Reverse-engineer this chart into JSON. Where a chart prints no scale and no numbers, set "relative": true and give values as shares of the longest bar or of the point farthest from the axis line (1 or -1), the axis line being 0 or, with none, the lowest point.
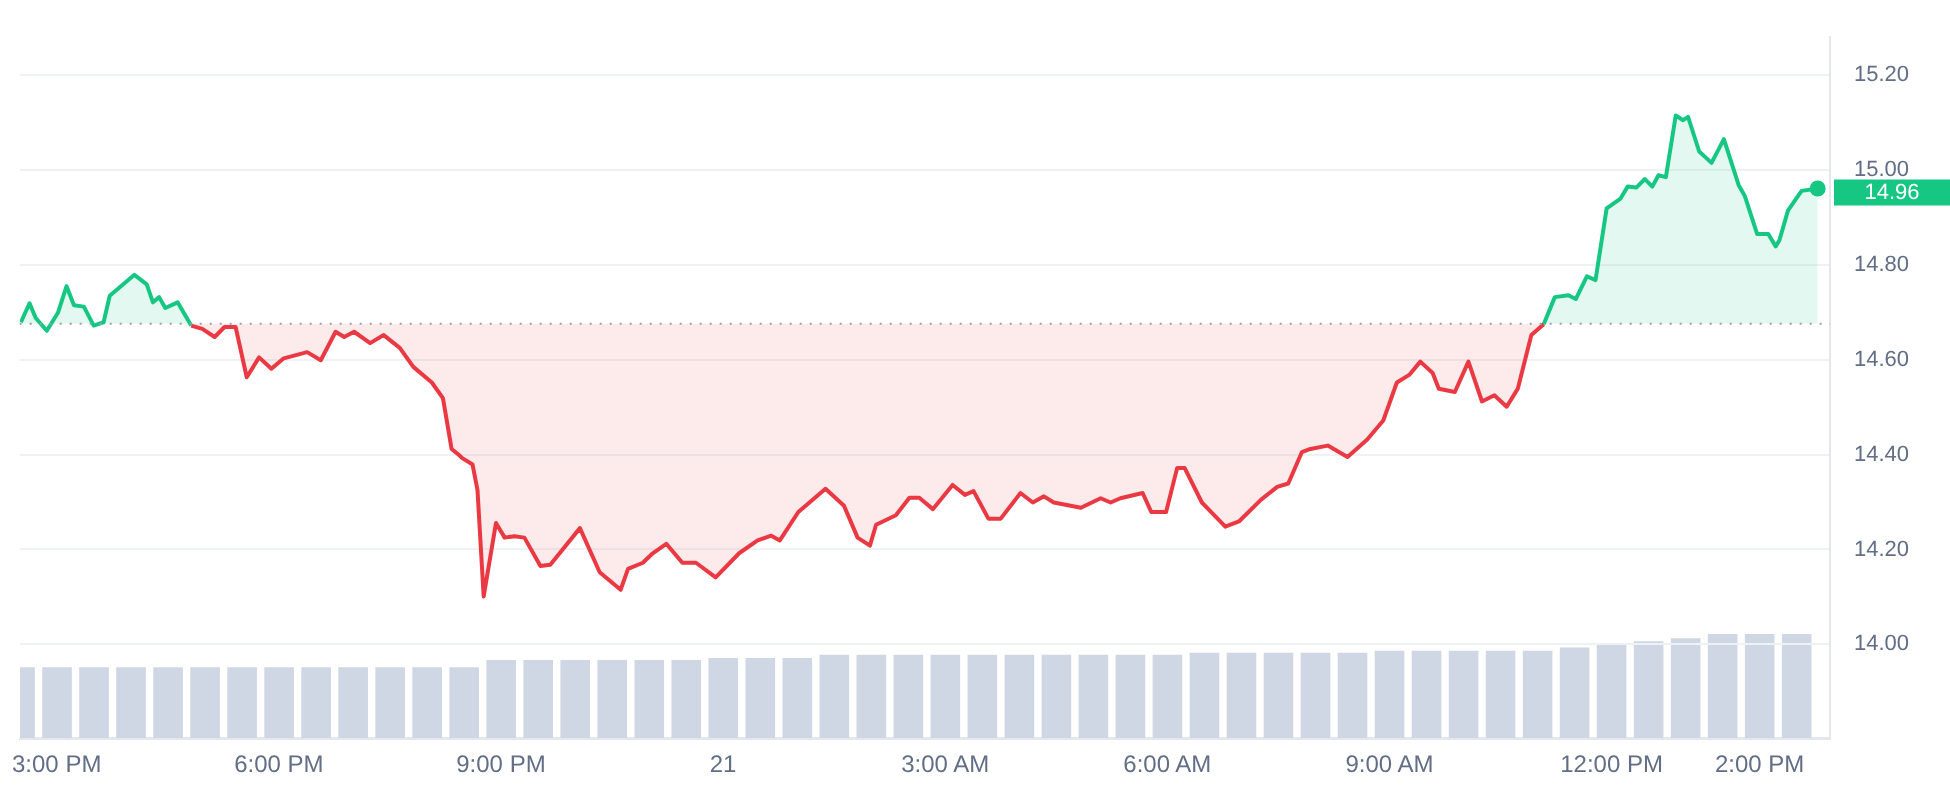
{
  "chart_data": [
    {
      "type": "area",
      "xlim": [
        "--01-20T14:30",
        "--01-21T14:57"
      ],
      "xticks": [
        {
          "value": "--01-20T15:00",
          "label": "3:00 PM"
        },
        {
          "value": "--01-20T18:00",
          "label": "6:00 PM"
        },
        {
          "value": "--01-20T21:00",
          "label": "9:00 PM"
        },
        {
          "value": "--01-21T00:00",
          "label": "21"
        },
        {
          "value": "--01-21T03:00",
          "label": "3:00 AM"
        },
        {
          "value": "--01-21T06:00",
          "label": "6:00 AM"
        },
        {
          "value": "--01-21T09:00",
          "label": "9:00 AM"
        },
        {
          "value": "--01-21T12:00",
          "label": "12:00 PM"
        },
        {
          "value": "--01-21T14:00",
          "label": "2:00 PM"
        }
      ],
      "ylim": [
        13.8,
        15.28
      ],
      "yticks": [
        {
          "value": 14,
          "label": "14.00"
        },
        {
          "value": 14.2,
          "label": "14.20"
        },
        {
          "value": 14.4,
          "label": "14.40"
        },
        {
          "value": 14.6,
          "label": "14.60"
        },
        {
          "value": 14.8,
          "label": "14.80"
        },
        {
          "value": 15,
          "label": "15.00"
        },
        {
          "value": 15.2,
          "label": "15.20"
        }
      ],
      "grid": "y",
      "legend": false,
      "marker": "none",
      "line_style": "solid",
      "ref_lines": [
        {
          "axis": "y",
          "value": 14.676,
          "color": "#9aa0a8",
          "line_style": "dotted"
        }
      ],
      "annotations": [
        "14.96"
      ],
      "series": [
        {
          "color": "#16c784",
          "x": [
            "--01-20T14:31",
            "--01-20T14:38",
            "--01-20T14:43",
            "--01-20T14:52",
            "--01-20T15:01",
            "--01-20T15:08",
            "--01-20T15:14",
            "--01-20T15:22",
            "--01-20T15:30",
            "--01-20T15:38",
            "--01-20T15:43",
            "--01-20T16:03",
            "--01-20T16:13",
            "--01-20T16:18",
            "--01-20T16:23",
            "--01-20T16:28",
            "--01-20T16:38",
            "--01-20T16:49"
          ],
          "values": [
            14.679,
            14.719,
            14.688,
            14.661,
            14.699,
            14.755,
            14.715,
            14.712,
            14.672,
            14.679,
            14.735,
            14.779,
            14.759,
            14.721,
            14.732,
            14.709,
            14.721,
            14.672
          ]
        },
        {
          "color": "#ea3943",
          "x": [
            "--01-20T16:49",
            "--01-20T16:58",
            "--01-20T17:08",
            "--01-20T17:16",
            "--01-20T17:25",
            "--01-20T17:34",
            "--01-20T17:44",
            "--01-20T17:54",
            "--01-20T18:04",
            "--01-20T18:23",
            "--01-20T18:34",
            "--01-20T18:46",
            "--01-20T18:53",
            "--01-20T19:01",
            "--01-20T19:14",
            "--01-20T19:25",
            "--01-20T19:38",
            "--01-20T19:49",
            "--01-20T20:04",
            "--01-20T20:13",
            "--01-20T20:20",
            "--01-20T20:26",
            "--01-20T20:29",
            "--01-20T20:37",
            "--01-20T20:41",
            "--01-20T20:46",
            "--01-20T20:56",
            "--01-20T21:03",
            "--01-20T21:11",
            "--01-20T21:19",
            "--01-20T21:32",
            "--01-20T21:40",
            "--01-20T22:04",
            "--01-20T22:20",
            "--01-20T22:37",
            "--01-20T22:43",
            "--01-20T22:55",
            "--01-20T23:03",
            "--01-20T23:14",
            "--01-20T23:27",
            "--01-20T23:38",
            "--01-20T23:54",
            "--01-21T00:13",
            "--01-21T00:28",
            "--01-21T00:39",
            "--01-21T00:46",
            "--01-21T01:01",
            "--01-21T01:23",
            "--01-21T01:38",
            "--01-21T01:49",
            "--01-21T01:59",
            "--01-21T02:04",
            "--01-21T02:20",
            "--01-21T02:31",
            "--01-21T02:39",
            "--01-21T02:50",
            "--01-21T03:06",
            "--01-21T03:16",
            "--01-21T03:23",
            "--01-21T03:35",
            "--01-21T03:45",
            "--01-21T04:01",
            "--01-21T04:11",
            "--01-21T04:20",
            "--01-21T04:28",
            "--01-21T04:50",
            "--01-21T05:06",
            "--01-21T05:14",
            "--01-21T05:22",
            "--01-21T05:40",
            "--01-21T05:47",
            "--01-21T05:59",
            "--01-21T06:08",
            "--01-21T06:14",
            "--01-21T06:28",
            "--01-21T06:47",
            "--01-21T06:58",
            "--01-21T07:16",
            "--01-21T07:29",
            "--01-21T07:38",
            "--01-21T07:49",
            "--01-21T07:56",
            "--01-21T08:10",
            "--01-21T08:26",
            "--01-21T08:42",
            "--01-21T08:55",
            "--01-21T09:06",
            "--01-21T09:16",
            "--01-21T09:25",
            "--01-21T09:35",
            "--01-21T09:40",
            "--01-21T09:53",
            "--01-21T10:04",
            "--01-21T10:15",
            "--01-21T10:25",
            "--01-21T10:35",
            "--01-21T10:44",
            "--01-21T10:55",
            "--01-21T11:05"
          ],
          "values": [
            14.672,
            14.665,
            14.648,
            14.669,
            14.669,
            14.563,
            14.605,
            14.581,
            14.603,
            14.616,
            14.599,
            14.659,
            14.648,
            14.659,
            14.635,
            14.652,
            14.625,
            14.585,
            14.552,
            14.519,
            14.412,
            14.399,
            14.392,
            14.379,
            14.325,
            14.101,
            14.256,
            14.225,
            14.228,
            14.225,
            14.165,
            14.168,
            14.245,
            14.152,
            14.115,
            14.159,
            14.172,
            14.192,
            14.212,
            14.172,
            14.172,
            14.141,
            14.192,
            14.219,
            14.229,
            14.219,
            14.279,
            14.328,
            14.292,
            14.225,
            14.208,
            14.252,
            14.272,
            14.309,
            14.309,
            14.285,
            14.336,
            14.315,
            14.323,
            14.265,
            14.265,
            14.319,
            14.299,
            14.312,
            14.299,
            14.288,
            14.308,
            14.299,
            14.308,
            14.319,
            14.279,
            14.279,
            14.372,
            14.372,
            14.299,
            14.248,
            14.259,
            14.305,
            14.332,
            14.339,
            14.405,
            14.412,
            14.419,
            14.395,
            14.432,
            14.472,
            14.552,
            14.568,
            14.596,
            14.572,
            14.539,
            14.532,
            14.596,
            14.512,
            14.525,
            14.501,
            14.539,
            14.652,
            14.675
          ]
        },
        {
          "color": "#16c784",
          "x": [
            "--01-21T11:05",
            "--01-21T11:14",
            "--01-21T11:25",
            "--01-21T11:31",
            "--01-21T11:40",
            "--01-21T11:47",
            "--01-21T11:56",
            "--01-21T12:07",
            "--01-21T12:13",
            "--01-21T12:20",
            "--01-21T12:27",
            "--01-21T12:33",
            "--01-21T12:38",
            "--01-21T12:44",
            "--01-21T12:52",
            "--01-21T12:58",
            "--01-21T13:02",
            "--01-21T13:11",
            "--01-21T13:21",
            "--01-21T13:31",
            "--01-21T13:43",
            "--01-21T13:48",
            "--01-21T13:58",
            "--01-21T14:07",
            "--01-21T14:13",
            "--01-21T14:16",
            "--01-21T14:23",
            "--01-21T14:34",
            "--01-21T14:47"
          ],
          "values": [
            14.675,
            14.732,
            14.736,
            14.728,
            14.776,
            14.768,
            14.919,
            14.939,
            14.965,
            14.963,
            14.981,
            14.965,
            14.989,
            14.985,
            15.115,
            15.105,
            15.112,
            15.039,
            15.015,
            15.065,
            14.968,
            14.945,
            14.865,
            14.865,
            14.839,
            14.852,
            14.915,
            14.956,
            14.961
          ]
        }
      ]
    },
    {
      "type": "bar",
      "relative": true,
      "color": "#cfd6e4",
      "xlim": [
        "--01-20T14:30",
        "--01-21T14:57"
      ],
      "x": [
        "--01-20T14:30",
        "--01-20T15:00",
        "--01-20T15:30",
        "--01-20T16:00",
        "--01-20T16:30",
        "--01-20T17:00",
        "--01-20T17:30",
        "--01-20T18:00",
        "--01-20T18:30",
        "--01-20T19:00",
        "--01-20T19:30",
        "--01-20T20:00",
        "--01-20T20:30",
        "--01-20T21:00",
        "--01-20T21:30",
        "--01-20T22:00",
        "--01-20T22:30",
        "--01-20T23:00",
        "--01-20T23:30",
        "--01-21T00:00",
        "--01-21T00:30",
        "--01-21T01:00",
        "--01-21T01:30",
        "--01-21T02:00",
        "--01-21T02:30",
        "--01-21T03:00",
        "--01-21T03:30",
        "--01-21T04:00",
        "--01-21T04:30",
        "--01-21T05:00",
        "--01-21T05:30",
        "--01-21T06:00",
        "--01-21T06:30",
        "--01-21T07:00",
        "--01-21T07:30",
        "--01-21T08:00",
        "--01-21T08:30",
        "--01-21T09:00",
        "--01-21T09:30",
        "--01-21T10:00",
        "--01-21T10:30",
        "--01-21T11:00",
        "--01-21T11:30",
        "--01-21T12:00",
        "--01-21T12:30",
        "--01-21T13:00",
        "--01-21T13:30",
        "--01-21T14:00",
        "--01-21T14:30"
      ],
      "values": [
        0.68,
        0.68,
        0.68,
        0.68,
        0.68,
        0.68,
        0.68,
        0.68,
        0.68,
        0.68,
        0.68,
        0.68,
        0.68,
        0.75,
        0.75,
        0.75,
        0.75,
        0.75,
        0.75,
        0.77,
        0.77,
        0.77,
        0.8,
        0.8,
        0.8,
        0.8,
        0.8,
        0.8,
        0.8,
        0.8,
        0.8,
        0.8,
        0.82,
        0.82,
        0.82,
        0.82,
        0.82,
        0.84,
        0.84,
        0.84,
        0.84,
        0.84,
        0.87,
        0.9,
        0.93,
        0.96,
        1,
        1,
        1
      ]
    }
  ]
}
